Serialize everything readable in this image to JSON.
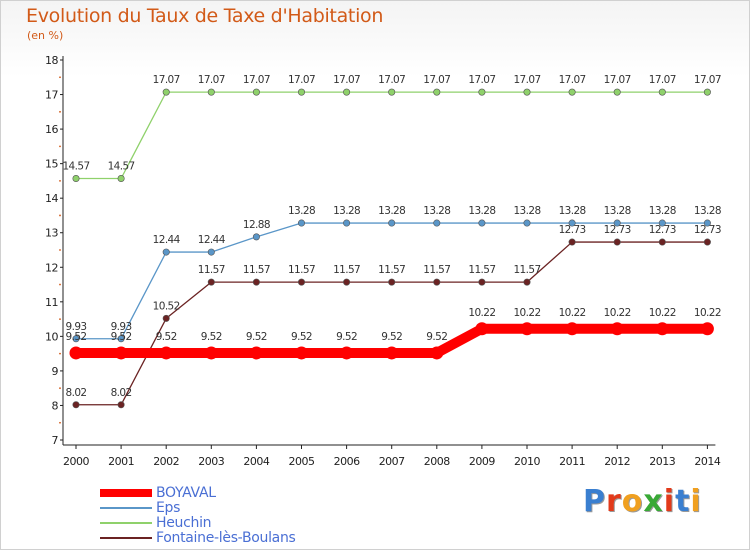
{
  "title": "Evolution du Taux de Taxe d'Habitation",
  "subtitle": "(en %)",
  "logo": {
    "letters": [
      "P",
      "r",
      "o",
      "x",
      "i",
      "t",
      "i"
    ],
    "colors": [
      "#3a7fd0",
      "#e23a1a",
      "#f0a020",
      "#39a936",
      "#e23a1a",
      "#3a7fd0",
      "#f0a020"
    ]
  },
  "chart_data": {
    "type": "line",
    "x": [
      "2000",
      "2001",
      "2002",
      "2003",
      "2004",
      "2005",
      "2006",
      "2007",
      "2008",
      "2009",
      "2010",
      "2011",
      "2012",
      "2013",
      "2014"
    ],
    "ylim": [
      7,
      18
    ],
    "yticks": [
      "7",
      "8",
      "9",
      "10",
      "11",
      "12",
      "13",
      "14",
      "15",
      "16",
      "17",
      "18"
    ],
    "grid": false,
    "legend_position": "bottom-left",
    "series": [
      {
        "name": "Heuchin",
        "color": "#8fd16b",
        "width": 1.3,
        "values": [
          14.57,
          14.57,
          17.07,
          17.07,
          17.07,
          17.07,
          17.07,
          17.07,
          17.07,
          17.07,
          17.07,
          17.07,
          17.07,
          17.07,
          17.07
        ],
        "labels": [
          "14.57",
          "14.57",
          "17.07",
          "17.07",
          "17.07",
          "17.07",
          "17.07",
          "17.07",
          "17.07",
          "17.07",
          "17.07",
          "17.07",
          "17.07",
          "17.07",
          "17.07"
        ]
      },
      {
        "name": "Eps",
        "color": "#5a96c8",
        "width": 1.3,
        "values": [
          9.93,
          9.93,
          12.44,
          12.44,
          12.88,
          13.28,
          13.28,
          13.28,
          13.28,
          13.28,
          13.28,
          13.28,
          13.28,
          13.28,
          13.28
        ],
        "labels": [
          "9.93",
          "9.93",
          "12.44",
          "12.44",
          "12.88",
          "13.28",
          "13.28",
          "13.28",
          "13.28",
          "13.28",
          "13.28",
          "13.28",
          "13.28",
          "13.28",
          "13.28"
        ]
      },
      {
        "name": "Fontaine-lès-Boulans",
        "color": "#6b2323",
        "width": 1.3,
        "values": [
          8.02,
          8.02,
          10.52,
          11.57,
          11.57,
          11.57,
          11.57,
          11.57,
          11.57,
          11.57,
          11.57,
          12.73,
          12.73,
          12.73,
          12.73
        ],
        "labels": [
          "8.02",
          "8.02",
          "10.52",
          "11.57",
          "11.57",
          "11.57",
          "11.57",
          "11.57",
          "11.57",
          "11.57",
          "11.57",
          "12.73",
          "12.73",
          "12.73",
          "12.73"
        ]
      },
      {
        "name": "BOYAVAL",
        "color": "#ff0000",
        "width": 10,
        "values": [
          9.52,
          9.52,
          9.52,
          9.52,
          9.52,
          9.52,
          9.52,
          9.52,
          9.52,
          10.22,
          10.22,
          10.22,
          10.22,
          10.22,
          10.22
        ],
        "labels": [
          "9.52",
          "9.52",
          "9.52",
          "9.52",
          "9.52",
          "9.52",
          "9.52",
          "9.52",
          "9.52",
          "10.22",
          "10.22",
          "10.22",
          "10.22",
          "10.22",
          "10.22"
        ]
      }
    ],
    "legend": [
      "BOYAVAL",
      "Eps",
      "Heuchin",
      "Fontaine-lès-Boulans"
    ]
  }
}
